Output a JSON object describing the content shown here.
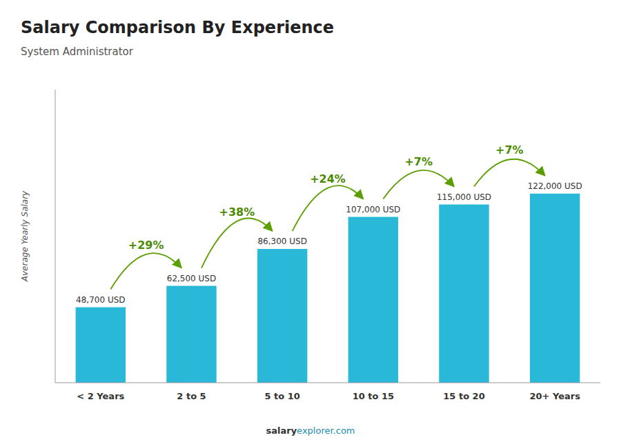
{
  "chart_data": {
    "type": "bar",
    "title": "Salary Comparison By Experience",
    "subtitle": "System Administrator",
    "ylabel": "Average Yearly Salary",
    "categories": [
      "< 2 Years",
      "2 to 5",
      "5 to 10",
      "10 to 15",
      "15 to 20",
      "20+ Years"
    ],
    "values": [
      48700,
      62500,
      86300,
      107000,
      115000,
      122000
    ],
    "value_labels": [
      "48,700 USD",
      "62,500 USD",
      "86,300 USD",
      "107,000 USD",
      "115,000 USD",
      "122,000 USD"
    ],
    "data_labels": true,
    "annotations": [
      "+29%",
      "+38%",
      "+24%",
      "+7%",
      "+7%"
    ],
    "footer": [
      "salary",
      "explorer.com"
    ],
    "color": "#29b8d8",
    "ylim": [
      0,
      189100
    ],
    "tick_labels": "x",
    "grid": false
  }
}
